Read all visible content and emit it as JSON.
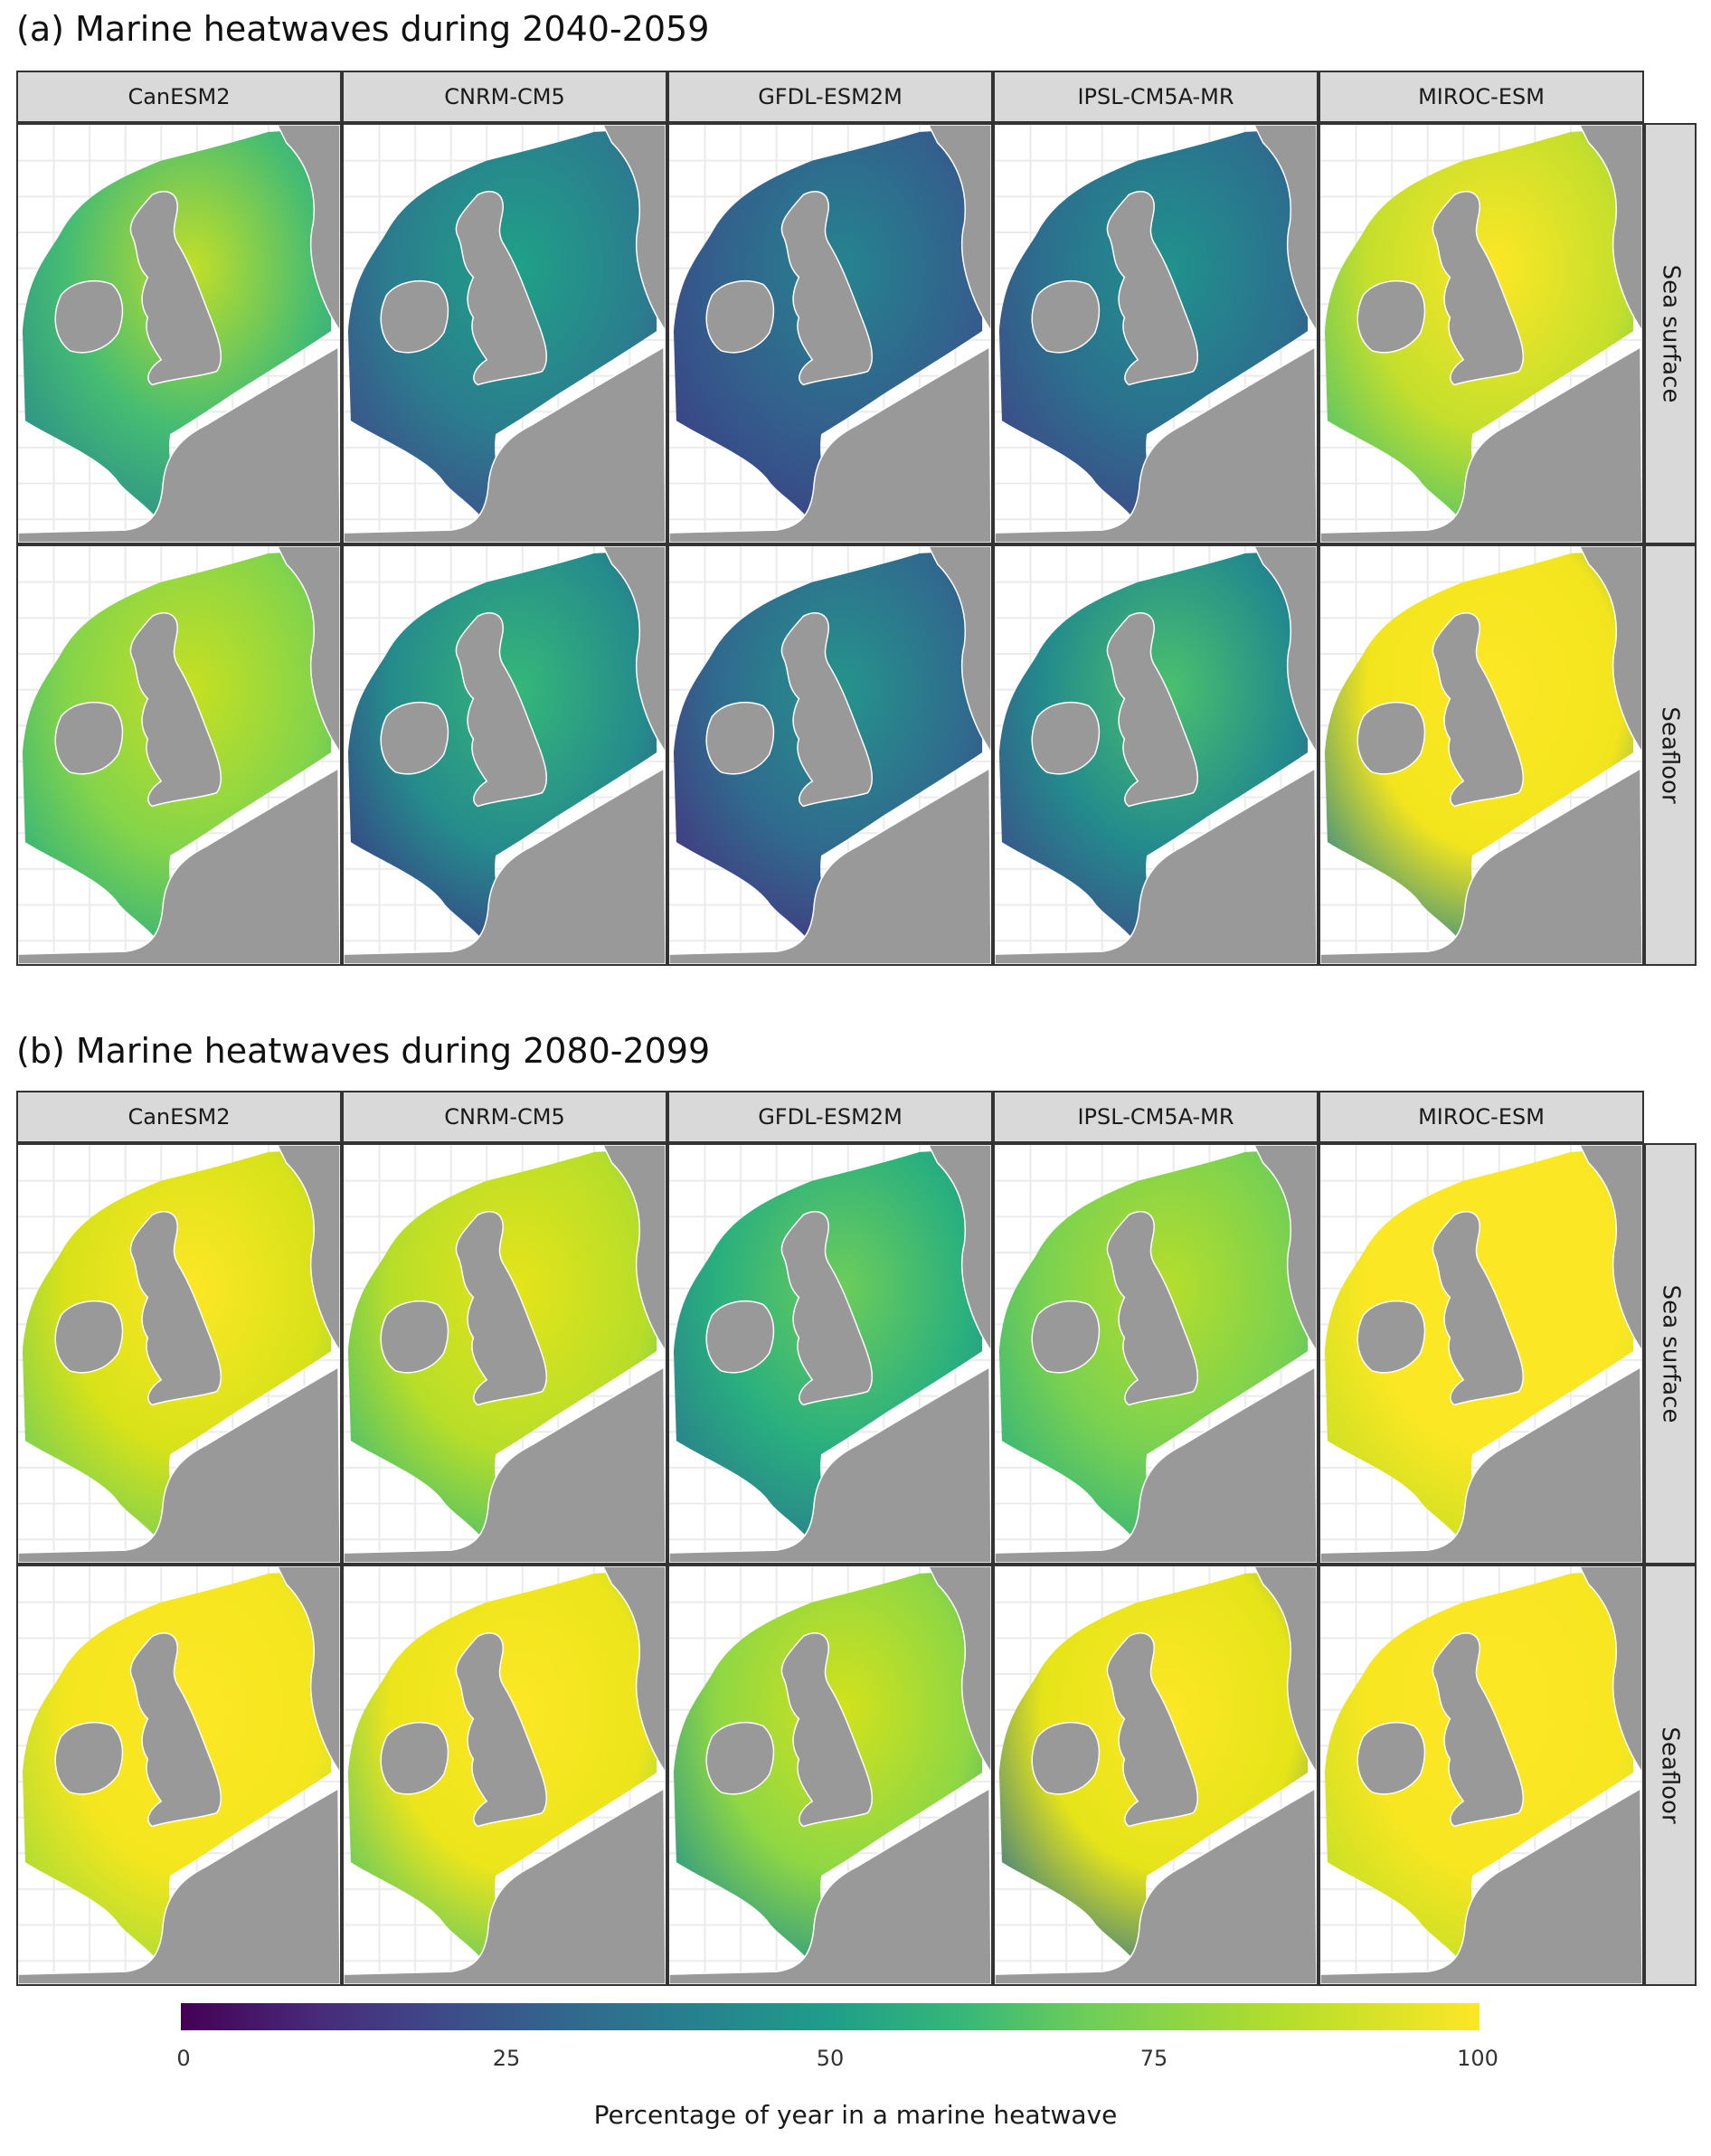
{
  "panels": [
    {
      "title": "(a) Marine heatwaves during 2040-2059",
      "rows": [
        {
          "label": "Sea surface",
          "cells": [
            {
              "model": "CanESM2",
              "sea": "#45bc73",
              "accent": "#c2df28",
              "edge": "#2a8a8c"
            },
            {
              "model": "CNRM-CM5",
              "sea": "#2b7d8e",
              "accent": "#1fa187",
              "edge": "#3f4a8a"
            },
            {
              "model": "GFDL-ESM2M",
              "sea": "#33608d",
              "accent": "#25848e",
              "edge": "#3b3f85"
            },
            {
              "model": "IPSL-CM5A-MR",
              "sea": "#2c6f8e",
              "accent": "#20928c",
              "edge": "#414487"
            },
            {
              "model": "MIROC-ESM",
              "sea": "#c5df2c",
              "accent": "#fde725",
              "edge": "#4ac16d"
            }
          ]
        },
        {
          "label": "Seafloor",
          "cells": [
            {
              "model": "CanESM2",
              "sea": "#84d44b",
              "accent": "#c6e021",
              "edge": "#29af7f"
            },
            {
              "model": "CNRM-CM5",
              "sea": "#258b8c",
              "accent": "#35b779",
              "edge": "#3a3a85"
            },
            {
              "model": "GFDL-ESM2M",
              "sea": "#306a8e",
              "accent": "#25938b",
              "edge": "#46327e"
            },
            {
              "model": "IPSL-CM5A-MR",
              "sea": "#238a8d",
              "accent": "#4ac16d",
              "edge": "#3e4a89"
            },
            {
              "model": "MIROC-ESM",
              "sea": "#f2e51d",
              "accent": "#fde725",
              "edge": "#25838e"
            }
          ]
        }
      ]
    },
    {
      "title": "(b) Marine heatwaves during 2080-2099",
      "rows": [
        {
          "label": "Sea surface",
          "cells": [
            {
              "model": "CanESM2",
              "sea": "#d8e219",
              "accent": "#fde725",
              "edge": "#6ccd5a"
            },
            {
              "model": "CNRM-CM5",
              "sea": "#b8de29",
              "accent": "#e5e419",
              "edge": "#3fbc73"
            },
            {
              "model": "GFDL-ESM2M",
              "sea": "#29af7f",
              "accent": "#6ccd5a",
              "edge": "#2a788e"
            },
            {
              "model": "IPSL-CM5A-MR",
              "sea": "#7ad151",
              "accent": "#b5de2b",
              "edge": "#2db27d"
            },
            {
              "model": "MIROC-ESM",
              "sea": "#fbe723",
              "accent": "#fde725",
              "edge": "#c2df23"
            }
          ]
        },
        {
          "label": "Seafloor",
          "cells": [
            {
              "model": "CanESM2",
              "sea": "#f4e61e",
              "accent": "#fde725",
              "edge": "#a0da39"
            },
            {
              "model": "CNRM-CM5",
              "sea": "#ece51b",
              "accent": "#fde725",
              "edge": "#52c569"
            },
            {
              "model": "GFDL-ESM2M",
              "sea": "#8fd744",
              "accent": "#d2e21b",
              "edge": "#21918c"
            },
            {
              "model": "IPSL-CM5A-MR",
              "sea": "#e5e419",
              "accent": "#fde725",
              "edge": "#2c728e"
            },
            {
              "model": "MIROC-ESM",
              "sea": "#f8e621",
              "accent": "#fde725",
              "edge": "#bddf26"
            }
          ]
        }
      ]
    }
  ],
  "legend": {
    "title": "Percentage of year in a marine heatwave",
    "ticks": [
      "0",
      "25",
      "50",
      "75",
      "100"
    ],
    "range": [
      0,
      100
    ],
    "colors": [
      "#440154",
      "#3e4a89",
      "#26828e",
      "#35b779",
      "#fde725"
    ]
  },
  "colors": {
    "land": "#999999",
    "strip": "#d9d9d9",
    "grid": "#ebebeb"
  }
}
